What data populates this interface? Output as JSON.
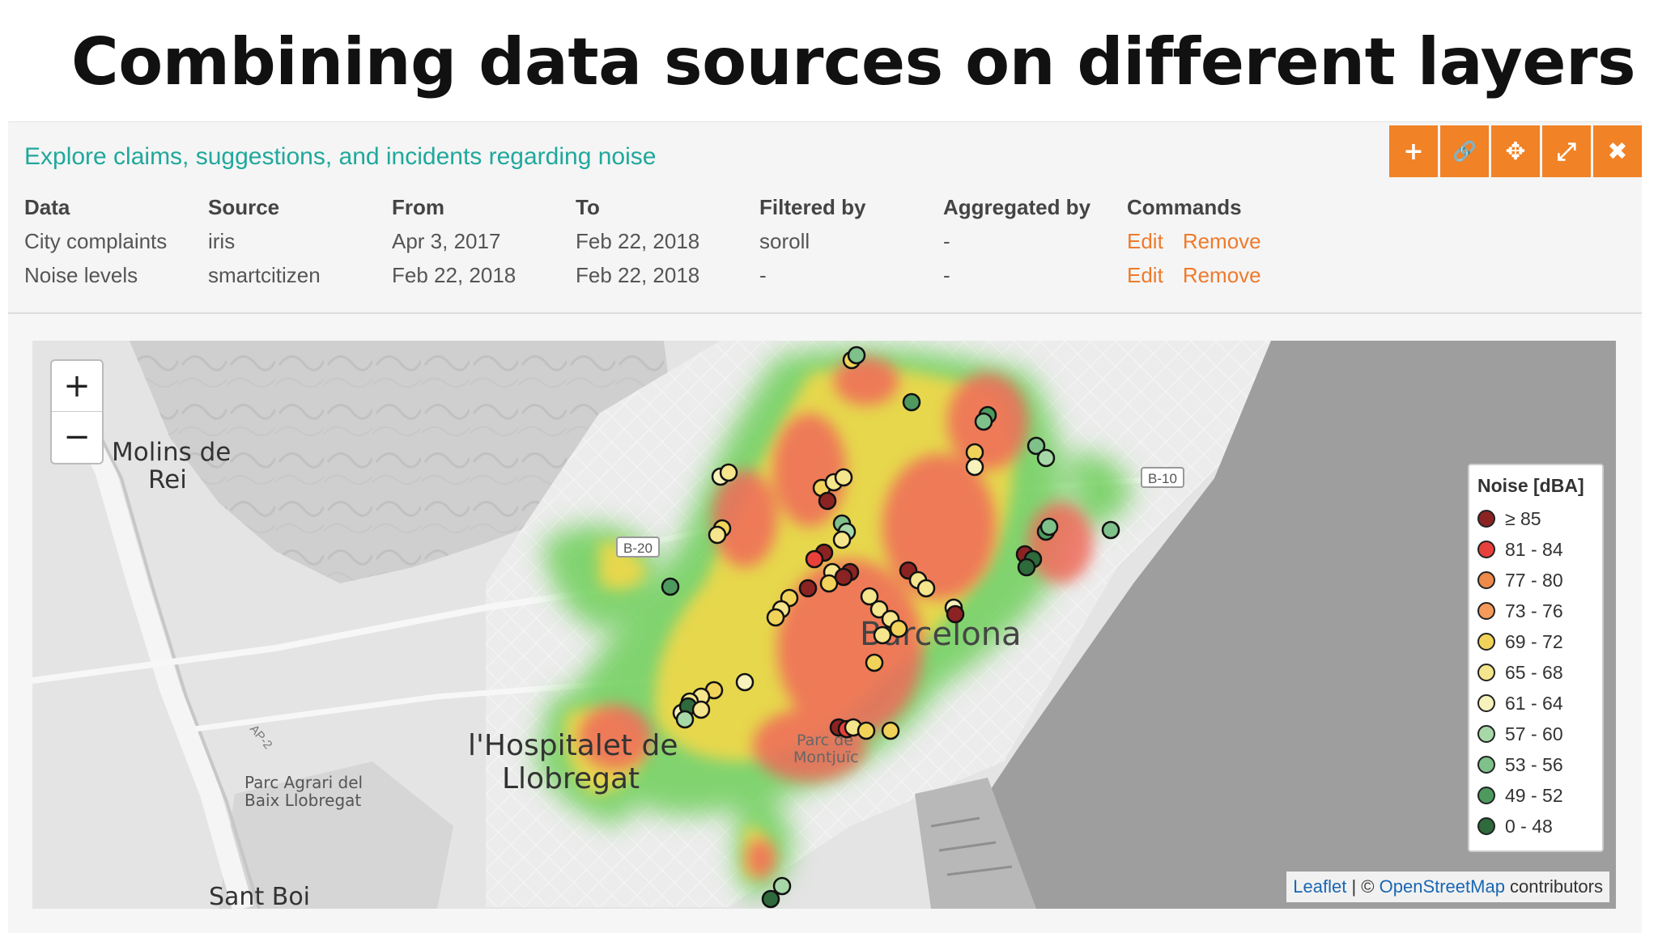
{
  "slide_title": "Combining data sources on different layers",
  "panel": {
    "title": "Explore claims, suggestions, and incidents regarding noise",
    "toolbar": [
      {
        "icon": "plus-icon",
        "glyph": "+"
      },
      {
        "icon": "link-icon",
        "glyph": "🔗"
      },
      {
        "icon": "move-icon",
        "glyph": "✥"
      },
      {
        "icon": "expand-icon",
        "glyph": "⤢"
      },
      {
        "icon": "close-icon",
        "glyph": "✖"
      }
    ]
  },
  "layers": {
    "headers": [
      "Data",
      "Source",
      "From",
      "To",
      "Filtered by",
      "Aggregated by",
      "Commands"
    ],
    "rows": [
      {
        "data": "City complaints",
        "source": "iris",
        "from": "Apr 3, 2017",
        "to": "Feb 22, 2018",
        "filtered_by": "soroll",
        "aggregated_by": "-",
        "edit": "Edit",
        "remove": "Remove"
      },
      {
        "data": "Noise levels",
        "source": "smartcitizen",
        "from": "Feb 22, 2018",
        "to": "Feb 22, 2018",
        "filtered_by": "-",
        "aggregated_by": "-",
        "edit": "Edit",
        "remove": "Remove"
      }
    ]
  },
  "map": {
    "zoom_in": "+",
    "zoom_out": "−",
    "place_labels": {
      "molins": "Molins de",
      "molins2": "Rei",
      "barcelona": "Barcelona",
      "hospitalet": "l'Hospitalet de",
      "hospitalet2": "Llobregat",
      "parc_agrari": "Parc Agrari del",
      "parc_agrari2": "Baix Llobregat",
      "montjuic": "Parc de",
      "montjuic2": "Montjuïc",
      "sant_boi": "Sant Boi",
      "b10": "B-10",
      "b20": "B-20",
      "ap2": "AP-2"
    },
    "legend": {
      "title": "Noise [dBA]",
      "items": [
        {
          "label": "≥ 85",
          "color": "#8b2323"
        },
        {
          "label": "81 - 84",
          "color": "#e8403a"
        },
        {
          "label": "77 - 80",
          "color": "#ee8a4a"
        },
        {
          "label": "73 - 76",
          "color": "#f49a5a"
        },
        {
          "label": "69 - 72",
          "color": "#f2d35a"
        },
        {
          "label": "65 - 68",
          "color": "#f5e58c"
        },
        {
          "label": "61 - 64",
          "color": "#f7f2bc"
        },
        {
          "label": "57 - 60",
          "color": "#a7d8a8"
        },
        {
          "label": "53 - 56",
          "color": "#7fc18a"
        },
        {
          "label": "49 - 52",
          "color": "#4e9a5e"
        },
        {
          "label": "0 - 48",
          "color": "#2e6a3c"
        }
      ]
    },
    "attribution": {
      "leaflet": "Leaflet",
      "sep": " | © ",
      "osm": "OpenStreetMap",
      "rest": " contributors"
    }
  }
}
